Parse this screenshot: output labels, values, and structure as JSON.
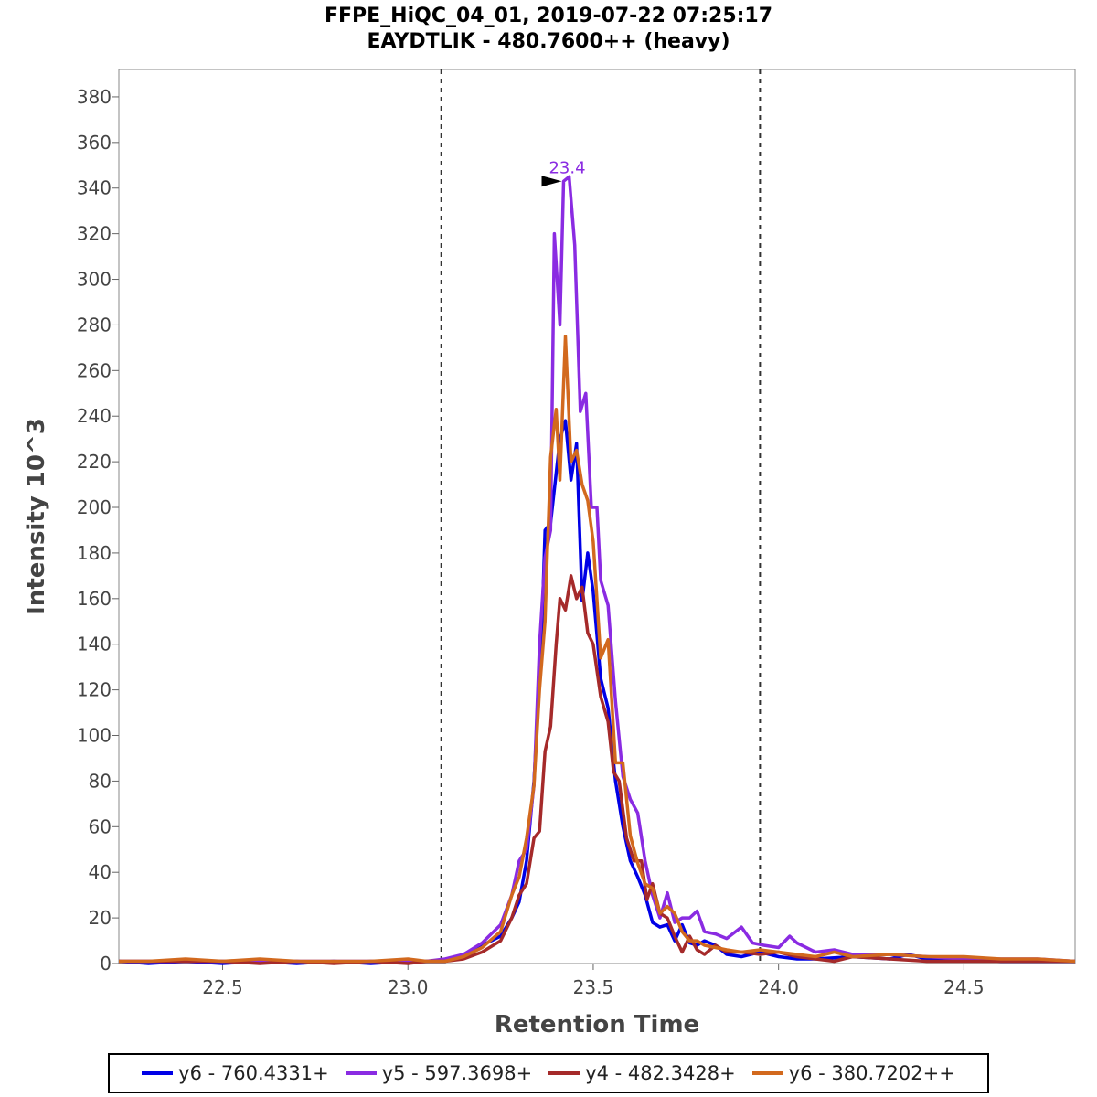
{
  "chart_data": {
    "type": "line",
    "title": "FFPE_HiQC_04_01, 2019-07-22 07:25:17",
    "subtitle": "EAYDTLIK - 480.7600++ (heavy)",
    "xlabel": "Retention Time",
    "ylabel": "Intensity 10^3",
    "xlim": [
      22.22,
      24.8
    ],
    "ylim": [
      0,
      392
    ],
    "xticks": [
      22.5,
      23.0,
      23.5,
      24.0,
      24.5
    ],
    "xtick_labels": [
      "22.5",
      "23.0",
      "23.5",
      "24.0",
      "24.5"
    ],
    "yticks": [
      0,
      20,
      40,
      60,
      80,
      100,
      120,
      140,
      160,
      180,
      200,
      220,
      240,
      260,
      280,
      300,
      320,
      340,
      360,
      380
    ],
    "ytick_labels": [
      "0",
      "20",
      "40",
      "60",
      "80",
      "100",
      "120",
      "140",
      "160",
      "180",
      "200",
      "220",
      "240",
      "260",
      "280",
      "300",
      "320",
      "340",
      "360",
      "380"
    ],
    "boundaries": [
      23.09,
      23.95
    ],
    "peak_annotation": {
      "x": 23.42,
      "y": 343,
      "label": "23.4",
      "color": "#8a2be2"
    },
    "legend_position": "bottom",
    "series": [
      {
        "name": "y6 - 760.4331+",
        "color": "#0000e6",
        "points": [
          [
            22.22,
            1
          ],
          [
            22.3,
            0
          ],
          [
            22.4,
            1
          ],
          [
            22.5,
            0
          ],
          [
            22.6,
            1
          ],
          [
            22.7,
            0
          ],
          [
            22.8,
            1
          ],
          [
            22.9,
            0
          ],
          [
            23.0,
            1
          ],
          [
            23.05,
            1
          ],
          [
            23.1,
            1
          ],
          [
            23.15,
            3
          ],
          [
            23.2,
            8
          ],
          [
            23.25,
            12
          ],
          [
            23.28,
            20
          ],
          [
            23.3,
            27
          ],
          [
            23.32,
            45
          ],
          [
            23.34,
            80
          ],
          [
            23.36,
            140
          ],
          [
            23.37,
            190
          ],
          [
            23.385,
            193
          ],
          [
            23.4,
            215
          ],
          [
            23.41,
            230
          ],
          [
            23.425,
            238
          ],
          [
            23.44,
            212
          ],
          [
            23.455,
            228
          ],
          [
            23.47,
            159
          ],
          [
            23.485,
            180
          ],
          [
            23.5,
            163
          ],
          [
            23.52,
            125
          ],
          [
            23.54,
            112
          ],
          [
            23.56,
            80
          ],
          [
            23.58,
            60
          ],
          [
            23.6,
            45
          ],
          [
            23.62,
            38
          ],
          [
            23.64,
            30
          ],
          [
            23.66,
            18
          ],
          [
            23.68,
            16
          ],
          [
            23.7,
            17
          ],
          [
            23.72,
            10
          ],
          [
            23.74,
            17
          ],
          [
            23.76,
            9
          ],
          [
            23.78,
            8
          ],
          [
            23.8,
            10
          ],
          [
            23.83,
            8
          ],
          [
            23.86,
            4
          ],
          [
            23.9,
            3
          ],
          [
            23.95,
            5
          ],
          [
            24.0,
            3
          ],
          [
            24.05,
            2
          ],
          [
            24.1,
            2
          ],
          [
            24.2,
            3
          ],
          [
            24.3,
            2
          ],
          [
            24.35,
            4
          ],
          [
            24.4,
            2
          ],
          [
            24.5,
            2
          ],
          [
            24.6,
            1
          ],
          [
            24.7,
            1
          ],
          [
            24.8,
            1
          ]
        ]
      },
      {
        "name": "y5 - 597.3698+",
        "color": "#8a2be2",
        "points": [
          [
            22.22,
            1
          ],
          [
            22.3,
            1
          ],
          [
            22.4,
            1
          ],
          [
            22.5,
            1
          ],
          [
            22.6,
            1
          ],
          [
            22.7,
            1
          ],
          [
            22.8,
            1
          ],
          [
            22.9,
            1
          ],
          [
            23.0,
            1
          ],
          [
            23.05,
            1
          ],
          [
            23.1,
            2
          ],
          [
            23.15,
            4
          ],
          [
            23.2,
            9
          ],
          [
            23.25,
            17
          ],
          [
            23.28,
            30
          ],
          [
            23.3,
            45
          ],
          [
            23.32,
            50
          ],
          [
            23.34,
            78
          ],
          [
            23.355,
            140
          ],
          [
            23.37,
            178
          ],
          [
            23.385,
            190
          ],
          [
            23.395,
            320
          ],
          [
            23.41,
            280
          ],
          [
            23.42,
            343
          ],
          [
            23.435,
            345
          ],
          [
            23.45,
            315
          ],
          [
            23.465,
            242
          ],
          [
            23.48,
            250
          ],
          [
            23.495,
            200
          ],
          [
            23.51,
            200
          ],
          [
            23.52,
            168
          ],
          [
            23.54,
            157
          ],
          [
            23.56,
            115
          ],
          [
            23.58,
            82
          ],
          [
            23.6,
            72
          ],
          [
            23.62,
            66
          ],
          [
            23.64,
            45
          ],
          [
            23.66,
            30
          ],
          [
            23.68,
            20
          ],
          [
            23.7,
            31
          ],
          [
            23.72,
            18
          ],
          [
            23.74,
            20
          ],
          [
            23.76,
            20
          ],
          [
            23.78,
            23
          ],
          [
            23.8,
            14
          ],
          [
            23.83,
            13
          ],
          [
            23.86,
            11
          ],
          [
            23.9,
            16
          ],
          [
            23.93,
            9
          ],
          [
            23.96,
            8
          ],
          [
            24.0,
            7
          ],
          [
            24.03,
            12
          ],
          [
            24.05,
            9
          ],
          [
            24.1,
            5
          ],
          [
            24.15,
            6
          ],
          [
            24.2,
            4
          ],
          [
            24.3,
            4
          ],
          [
            24.4,
            3
          ],
          [
            24.5,
            2
          ],
          [
            24.6,
            2
          ],
          [
            24.7,
            2
          ],
          [
            24.8,
            1
          ]
        ]
      },
      {
        "name": "y4 - 482.3428+",
        "color": "#a52a2a",
        "points": [
          [
            22.22,
            1
          ],
          [
            22.3,
            1
          ],
          [
            22.4,
            1
          ],
          [
            22.5,
            1
          ],
          [
            22.6,
            0
          ],
          [
            22.7,
            1
          ],
          [
            22.8,
            0
          ],
          [
            22.9,
            1
          ],
          [
            23.0,
            0
          ],
          [
            23.05,
            1
          ],
          [
            23.1,
            1
          ],
          [
            23.15,
            2
          ],
          [
            23.2,
            5
          ],
          [
            23.25,
            10
          ],
          [
            23.28,
            20
          ],
          [
            23.3,
            30
          ],
          [
            23.32,
            35
          ],
          [
            23.34,
            55
          ],
          [
            23.355,
            58
          ],
          [
            23.37,
            93
          ],
          [
            23.385,
            104
          ],
          [
            23.4,
            140
          ],
          [
            23.41,
            160
          ],
          [
            23.425,
            155
          ],
          [
            23.44,
            170
          ],
          [
            23.455,
            160
          ],
          [
            23.47,
            165
          ],
          [
            23.485,
            145
          ],
          [
            23.5,
            140
          ],
          [
            23.52,
            117
          ],
          [
            23.54,
            106
          ],
          [
            23.555,
            84
          ],
          [
            23.57,
            80
          ],
          [
            23.59,
            55
          ],
          [
            23.61,
            45
          ],
          [
            23.63,
            45
          ],
          [
            23.645,
            28
          ],
          [
            23.66,
            35
          ],
          [
            23.68,
            22
          ],
          [
            23.7,
            20
          ],
          [
            23.72,
            12
          ],
          [
            23.74,
            5
          ],
          [
            23.76,
            12
          ],
          [
            23.78,
            6
          ],
          [
            23.8,
            4
          ],
          [
            23.83,
            8
          ],
          [
            23.86,
            5
          ],
          [
            23.9,
            5
          ],
          [
            23.95,
            4
          ],
          [
            24.0,
            5
          ],
          [
            24.05,
            3
          ],
          [
            24.1,
            2
          ],
          [
            24.15,
            1
          ],
          [
            24.2,
            3
          ],
          [
            24.3,
            2
          ],
          [
            24.4,
            1
          ],
          [
            24.5,
            1
          ],
          [
            24.6,
            1
          ],
          [
            24.7,
            1
          ],
          [
            24.8,
            1
          ]
        ]
      },
      {
        "name": "y6 - 380.7202++",
        "color": "#d2691e",
        "points": [
          [
            22.22,
            1
          ],
          [
            22.3,
            1
          ],
          [
            22.4,
            2
          ],
          [
            22.5,
            1
          ],
          [
            22.6,
            2
          ],
          [
            22.7,
            1
          ],
          [
            22.8,
            1
          ],
          [
            22.9,
            1
          ],
          [
            23.0,
            2
          ],
          [
            23.05,
            1
          ],
          [
            23.1,
            1
          ],
          [
            23.15,
            3
          ],
          [
            23.2,
            7
          ],
          [
            23.25,
            14
          ],
          [
            23.28,
            30
          ],
          [
            23.3,
            38
          ],
          [
            23.32,
            55
          ],
          [
            23.34,
            78
          ],
          [
            23.355,
            120
          ],
          [
            23.37,
            150
          ],
          [
            23.385,
            222
          ],
          [
            23.4,
            243
          ],
          [
            23.41,
            212
          ],
          [
            23.425,
            275
          ],
          [
            23.44,
            220
          ],
          [
            23.455,
            225
          ],
          [
            23.47,
            210
          ],
          [
            23.485,
            203
          ],
          [
            23.5,
            185
          ],
          [
            23.52,
            134
          ],
          [
            23.54,
            142
          ],
          [
            23.56,
            88
          ],
          [
            23.58,
            88
          ],
          [
            23.6,
            56
          ],
          [
            23.62,
            44
          ],
          [
            23.64,
            35
          ],
          [
            23.66,
            33
          ],
          [
            23.68,
            22
          ],
          [
            23.7,
            25
          ],
          [
            23.72,
            22
          ],
          [
            23.74,
            14
          ],
          [
            23.76,
            10
          ],
          [
            23.78,
            10
          ],
          [
            23.8,
            8
          ],
          [
            23.83,
            7
          ],
          [
            23.86,
            6
          ],
          [
            23.9,
            5
          ],
          [
            23.95,
            6
          ],
          [
            24.0,
            5
          ],
          [
            24.05,
            4
          ],
          [
            24.1,
            3
          ],
          [
            24.15,
            5
          ],
          [
            24.2,
            3
          ],
          [
            24.3,
            4
          ],
          [
            24.4,
            3
          ],
          [
            24.5,
            3
          ],
          [
            24.6,
            2
          ],
          [
            24.7,
            2
          ],
          [
            24.8,
            1
          ]
        ]
      }
    ]
  }
}
